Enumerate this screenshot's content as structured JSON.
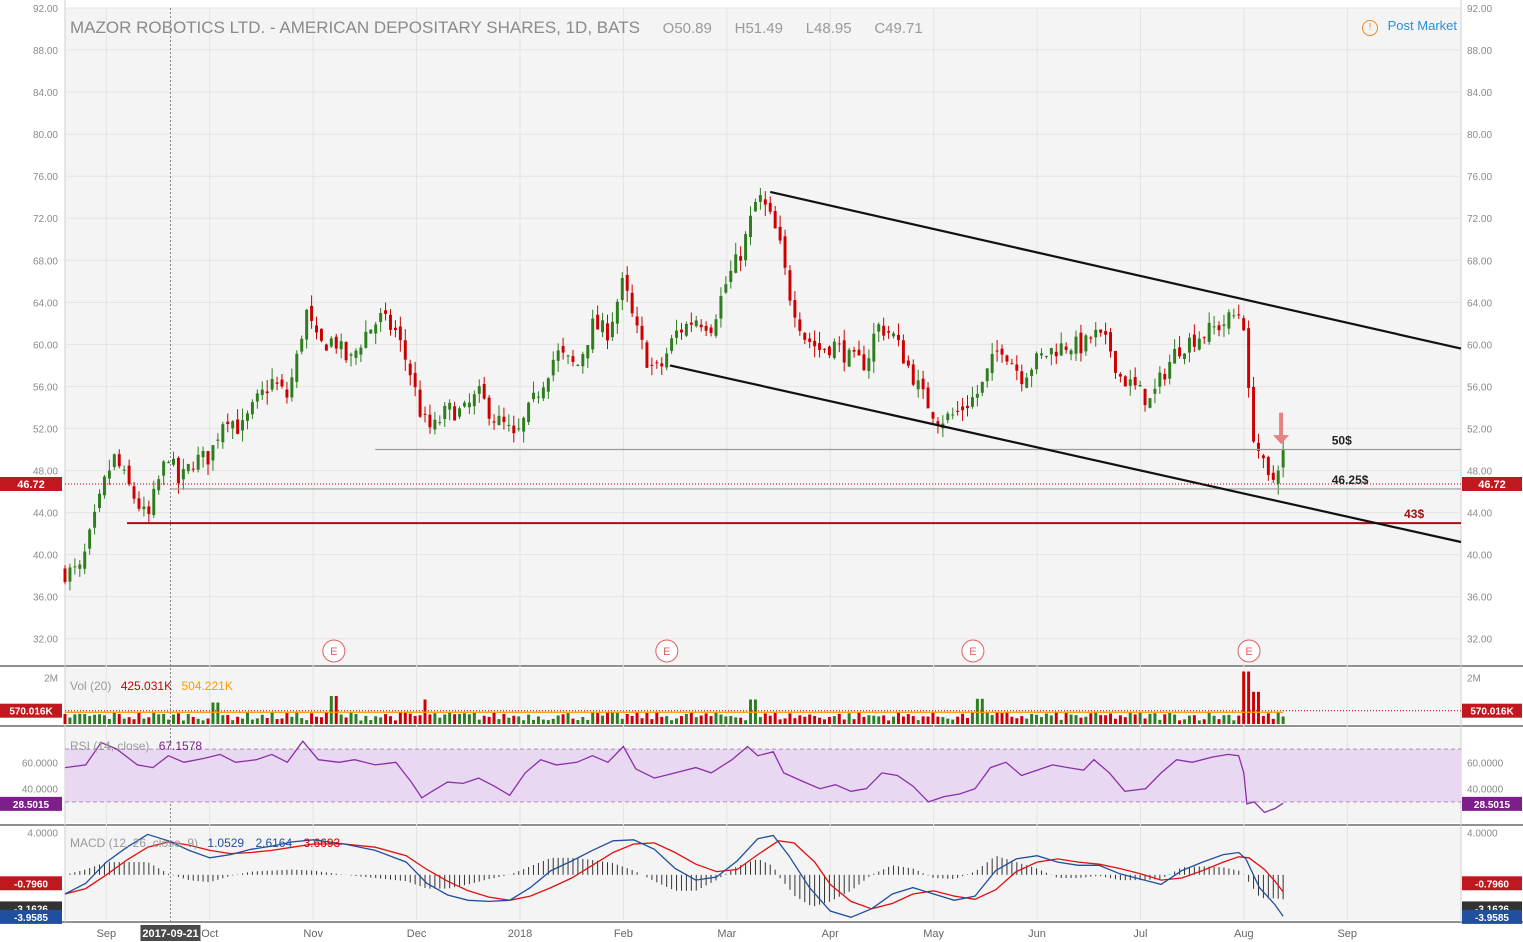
{
  "header": {
    "title": "MAZOR ROBOTICS LTD. - AMERICAN DEPOSITARY SHARES, 1D, BATS",
    "open": "O50.89",
    "high": "H51.49",
    "low": "L48.95",
    "close": "C49.71",
    "post_market": "Post Market"
  },
  "indicators": {
    "vol_label": "Vol (20)",
    "vol_value": "425.031K",
    "vol_ma": "504.221K",
    "rsi_label": "RSI (14, close)",
    "rsi_value": "67.1578",
    "macd_label": "MACD (12, 26, close, 9)",
    "macd_hist": "1.0529",
    "macd_line": "2.6164",
    "macd_signal": "3.6693"
  },
  "colors": {
    "up": "#2e7d1f",
    "down": "#cc0000",
    "background": "#f4f4f4",
    "rsi_fill": "#e8d8f2",
    "rsi_line": "#8b2fa8",
    "macd_line": "#1f4f9e",
    "signal_line": "#e01010",
    "support_43": "#a11111",
    "arrow": "#e88080"
  },
  "chart_data": {
    "type": "candlestick",
    "title": "MAZOR ROBOTICS LTD. - AMERICAN DEPOSITARY SHARES, 1D, BATS",
    "ylim": [
      29.5,
      92
    ],
    "y_ticks": [
      "92.00",
      "88.00",
      "84.00",
      "80.00",
      "76.00",
      "72.00",
      "68.00",
      "64.00",
      "60.00",
      "56.00",
      "52.00",
      "48.00",
      "44.00",
      "40.00",
      "36.00",
      "32.00"
    ],
    "x_ticks": [
      "Sep",
      "Oct",
      "Nov",
      "Dec",
      "2018",
      "Feb",
      "Mar",
      "Apr",
      "May",
      "Jun",
      "Jul",
      "Aug",
      "Sep"
    ],
    "x_tick_months": [
      0,
      1,
      2,
      3,
      4,
      5,
      6,
      7,
      8,
      9,
      10,
      11,
      12
    ],
    "x_range_months": [
      -0.4,
      13.1
    ],
    "crosshair_date_label": "2017-09-21",
    "crosshair_month": 0.62,
    "price_badge": "46.72",
    "price_last": 46.72,
    "earnings_marker": "E",
    "earnings_months": [
      2.2,
      5.42,
      8.38,
      11.05
    ],
    "close_path": [
      [
        -0.4,
        38.3
      ],
      [
        -0.25,
        38.5
      ],
      [
        -0.1,
        43.8
      ],
      [
        0.0,
        47.5
      ],
      [
        0.08,
        49.2
      ],
      [
        0.25,
        45.8
      ],
      [
        0.4,
        43.2
      ],
      [
        0.48,
        46.3
      ],
      [
        0.6,
        49.6
      ],
      [
        0.7,
        46.8
      ],
      [
        0.85,
        49.0
      ],
      [
        1.0,
        49.3
      ],
      [
        1.15,
        53.5
      ],
      [
        1.3,
        51.8
      ],
      [
        1.45,
        54.5
      ],
      [
        1.6,
        56.5
      ],
      [
        1.75,
        55.0
      ],
      [
        1.85,
        59.0
      ],
      [
        1.93,
        63.2
      ],
      [
        2.05,
        59.8
      ],
      [
        2.2,
        60.5
      ],
      [
        2.35,
        58.2
      ],
      [
        2.5,
        61.0
      ],
      [
        2.65,
        62.5
      ],
      [
        2.8,
        61.2
      ],
      [
        2.95,
        57.0
      ],
      [
        3.05,
        53.0
      ],
      [
        3.15,
        51.8
      ],
      [
        3.3,
        53.8
      ],
      [
        3.45,
        53.5
      ],
      [
        3.6,
        55.3
      ],
      [
        3.75,
        53.0
      ],
      [
        3.88,
        52.0
      ],
      [
        3.95,
        50.8
      ],
      [
        4.1,
        54.0
      ],
      [
        4.2,
        56.0
      ],
      [
        4.35,
        59.2
      ],
      [
        4.55,
        57.8
      ],
      [
        4.7,
        61.8
      ],
      [
        4.85,
        61.2
      ],
      [
        5.0,
        66.0
      ],
      [
        5.1,
        62.0
      ],
      [
        5.25,
        58.0
      ],
      [
        5.35,
        57.5
      ],
      [
        5.5,
        61.0
      ],
      [
        5.7,
        62.5
      ],
      [
        5.85,
        61.8
      ],
      [
        6.0,
        66.0
      ],
      [
        6.15,
        69.0
      ],
      [
        6.3,
        74.2
      ],
      [
        6.4,
        72.5
      ],
      [
        6.5,
        70.0
      ],
      [
        6.6,
        65.0
      ],
      [
        6.75,
        60.8
      ],
      [
        6.9,
        59.5
      ],
      [
        7.05,
        60.0
      ],
      [
        7.2,
        58.5
      ],
      [
        7.35,
        58.2
      ],
      [
        7.45,
        61.8
      ],
      [
        7.6,
        61.0
      ],
      [
        7.75,
        58.0
      ],
      [
        7.9,
        55.0
      ],
      [
        8.05,
        52.8
      ],
      [
        8.2,
        53.3
      ],
      [
        8.35,
        54.6
      ],
      [
        8.45,
        55.6
      ],
      [
        8.55,
        58.0
      ],
      [
        8.65,
        60.0
      ],
      [
        8.75,
        58.5
      ],
      [
        8.85,
        57.0
      ],
      [
        9.0,
        58.5
      ],
      [
        9.15,
        59.5
      ],
      [
        9.3,
        60.0
      ],
      [
        9.45,
        59.8
      ],
      [
        9.55,
        61.0
      ],
      [
        9.7,
        59.8
      ],
      [
        9.8,
        57.0
      ],
      [
        9.95,
        55.8
      ],
      [
        10.1,
        54.5
      ],
      [
        10.2,
        56.8
      ],
      [
        10.35,
        59.5
      ],
      [
        10.5,
        60.5
      ],
      [
        10.65,
        61.2
      ],
      [
        10.8,
        62.0
      ],
      [
        10.95,
        63.0
      ],
      [
        11.0,
        62.0
      ],
      [
        11.02,
        57.5
      ],
      [
        11.08,
        52.0
      ],
      [
        11.14,
        50.0
      ],
      [
        11.2,
        48.0
      ],
      [
        11.26,
        46.3
      ],
      [
        11.32,
        48.5
      ],
      [
        11.38,
        49.71
      ]
    ],
    "vol_ylim": [
      0,
      2400000
    ],
    "vol_tick": "2M",
    "vol_badge": "570.016K",
    "vol_ma_line": 504221,
    "vol_spikes": [
      [
        1.05,
        920000
      ],
      [
        2.2,
        1200000
      ],
      [
        3.1,
        1050000
      ],
      [
        6.25,
        1050000
      ],
      [
        8.45,
        1080000
      ],
      [
        11.02,
        2250000
      ],
      [
        11.12,
        1380000
      ]
    ],
    "rsi_ylim": [
      14,
      86
    ],
    "rsi_ticks": [
      "60.0000",
      "40.0000"
    ],
    "rsi_tick_values": [
      60,
      40
    ],
    "rsi_bands": [
      70,
      30
    ],
    "rsi_badge": "28.5015",
    "rsi_path": [
      [
        -0.4,
        56
      ],
      [
        -0.2,
        58
      ],
      [
        -0.05,
        75
      ],
      [
        0.1,
        70
      ],
      [
        0.3,
        58
      ],
      [
        0.45,
        56
      ],
      [
        0.6,
        65
      ],
      [
        0.75,
        60
      ],
      [
        0.95,
        63
      ],
      [
        1.1,
        66
      ],
      [
        1.25,
        60
      ],
      [
        1.45,
        62
      ],
      [
        1.6,
        66
      ],
      [
        1.75,
        60
      ],
      [
        1.9,
        76
      ],
      [
        2.05,
        62
      ],
      [
        2.25,
        60
      ],
      [
        2.4,
        62
      ],
      [
        2.6,
        58
      ],
      [
        2.8,
        60
      ],
      [
        2.95,
        45
      ],
      [
        3.05,
        33
      ],
      [
        3.15,
        38
      ],
      [
        3.3,
        45
      ],
      [
        3.45,
        44
      ],
      [
        3.6,
        48
      ],
      [
        3.75,
        42
      ],
      [
        3.9,
        35
      ],
      [
        4.05,
        52
      ],
      [
        4.2,
        62
      ],
      [
        4.35,
        58
      ],
      [
        4.55,
        60
      ],
      [
        4.7,
        65
      ],
      [
        4.85,
        60
      ],
      [
        5.0,
        72
      ],
      [
        5.12,
        55
      ],
      [
        5.3,
        48
      ],
      [
        5.5,
        52
      ],
      [
        5.7,
        56
      ],
      [
        5.85,
        52
      ],
      [
        6.05,
        62
      ],
      [
        6.2,
        72
      ],
      [
        6.3,
        65
      ],
      [
        6.45,
        68
      ],
      [
        6.55,
        52
      ],
      [
        6.75,
        45
      ],
      [
        6.9,
        40
      ],
      [
        7.05,
        43
      ],
      [
        7.2,
        38
      ],
      [
        7.35,
        40
      ],
      [
        7.5,
        52
      ],
      [
        7.65,
        50
      ],
      [
        7.8,
        42
      ],
      [
        7.95,
        30
      ],
      [
        8.1,
        34
      ],
      [
        8.25,
        36
      ],
      [
        8.4,
        40
      ],
      [
        8.55,
        56
      ],
      [
        8.7,
        60
      ],
      [
        8.85,
        50
      ],
      [
        9.0,
        54
      ],
      [
        9.15,
        58
      ],
      [
        9.3,
        56
      ],
      [
        9.45,
        54
      ],
      [
        9.55,
        62
      ],
      [
        9.7,
        52
      ],
      [
        9.85,
        38
      ],
      [
        10.05,
        40
      ],
      [
        10.2,
        52
      ],
      [
        10.35,
        62
      ],
      [
        10.5,
        60
      ],
      [
        10.7,
        64
      ],
      [
        10.85,
        66
      ],
      [
        10.95,
        65
      ],
      [
        11.0,
        52
      ],
      [
        11.03,
        28.5
      ],
      [
        11.1,
        30
      ],
      [
        11.2,
        22
      ],
      [
        11.3,
        25
      ],
      [
        11.38,
        29
      ]
    ],
    "macd_ylim": [
      -4.25,
      4.5
    ],
    "macd_ticks": [
      "4.0000"
    ],
    "macd_tick_values": [
      4.0
    ],
    "macd_badges": [
      "-0.7960",
      "-3.1626",
      "-3.9585"
    ],
    "macd_badge_values": [
      -0.796,
      -3.1626,
      -3.9585
    ],
    "macd_path": [
      [
        -0.4,
        -1.8
      ],
      [
        -0.2,
        -0.8
      ],
      [
        0.0,
        1.2
      ],
      [
        0.2,
        2.6
      ],
      [
        0.4,
        3.8
      ],
      [
        0.6,
        3.2
      ],
      [
        0.8,
        2.3
      ],
      [
        1.0,
        1.6
      ],
      [
        1.2,
        1.9
      ],
      [
        1.4,
        2.4
      ],
      [
        1.6,
        2.7
      ],
      [
        1.8,
        3.1
      ],
      [
        2.0,
        3.3
      ],
      [
        2.3,
        2.9
      ],
      [
        2.6,
        2.3
      ],
      [
        2.9,
        1.2
      ],
      [
        3.1,
        -0.8
      ],
      [
        3.3,
        -1.9
      ],
      [
        3.5,
        -2.4
      ],
      [
        3.7,
        -2.5
      ],
      [
        3.9,
        -2.4
      ],
      [
        4.1,
        -1.2
      ],
      [
        4.3,
        0.4
      ],
      [
        4.5,
        1.3
      ],
      [
        4.7,
        2.3
      ],
      [
        4.9,
        3.2
      ],
      [
        5.1,
        3.3
      ],
      [
        5.3,
        2.4
      ],
      [
        5.5,
        0.6
      ],
      [
        5.7,
        -0.5
      ],
      [
        5.9,
        -0.2
      ],
      [
        6.1,
        1.3
      ],
      [
        6.3,
        3.4
      ],
      [
        6.45,
        3.7
      ],
      [
        6.6,
        1.8
      ],
      [
        6.8,
        -1.2
      ],
      [
        7.0,
        -3.4
      ],
      [
        7.2,
        -4.0
      ],
      [
        7.4,
        -3.2
      ],
      [
        7.6,
        -1.8
      ],
      [
        7.8,
        -1.2
      ],
      [
        8.0,
        -1.8
      ],
      [
        8.2,
        -2.4
      ],
      [
        8.4,
        -2.0
      ],
      [
        8.6,
        0.4
      ],
      [
        8.8,
        1.5
      ],
      [
        9.0,
        1.8
      ],
      [
        9.2,
        1.2
      ],
      [
        9.4,
        0.9
      ],
      [
        9.6,
        0.9
      ],
      [
        9.8,
        0.1
      ],
      [
        10.0,
        -0.4
      ],
      [
        10.2,
        -0.9
      ],
      [
        10.4,
        0.4
      ],
      [
        10.6,
        1.2
      ],
      [
        10.8,
        1.9
      ],
      [
        10.95,
        2.1
      ],
      [
        11.02,
        1.5
      ],
      [
        11.15,
        -1.2
      ],
      [
        11.3,
        -2.8
      ],
      [
        11.38,
        -3.9
      ]
    ],
    "signal_path": [
      [
        -0.4,
        -1.8
      ],
      [
        -0.2,
        -1.3
      ],
      [
        0.0,
        0.0
      ],
      [
        0.2,
        1.4
      ],
      [
        0.4,
        2.6
      ],
      [
        0.6,
        3.1
      ],
      [
        0.8,
        2.8
      ],
      [
        1.0,
        2.3
      ],
      [
        1.2,
        2.0
      ],
      [
        1.4,
        2.1
      ],
      [
        1.6,
        2.3
      ],
      [
        1.8,
        2.6
      ],
      [
        2.0,
        2.9
      ],
      [
        2.3,
        2.9
      ],
      [
        2.6,
        2.6
      ],
      [
        2.9,
        1.8
      ],
      [
        3.1,
        0.5
      ],
      [
        3.3,
        -0.6
      ],
      [
        3.5,
        -1.5
      ],
      [
        3.7,
        -2.1
      ],
      [
        3.9,
        -2.4
      ],
      [
        4.1,
        -2.0
      ],
      [
        4.3,
        -1.2
      ],
      [
        4.5,
        -0.3
      ],
      [
        4.7,
        0.9
      ],
      [
        4.9,
        2.1
      ],
      [
        5.1,
        2.9
      ],
      [
        5.3,
        3.0
      ],
      [
        5.5,
        2.1
      ],
      [
        5.7,
        1.0
      ],
      [
        5.9,
        0.3
      ],
      [
        6.1,
        0.5
      ],
      [
        6.3,
        1.9
      ],
      [
        6.5,
        3.2
      ],
      [
        6.65,
        3.0
      ],
      [
        6.85,
        1.2
      ],
      [
        7.0,
        -0.9
      ],
      [
        7.2,
        -2.5
      ],
      [
        7.4,
        -3.2
      ],
      [
        7.6,
        -2.7
      ],
      [
        7.8,
        -1.8
      ],
      [
        8.0,
        -1.5
      ],
      [
        8.2,
        -2.0
      ],
      [
        8.4,
        -2.3
      ],
      [
        8.6,
        -1.4
      ],
      [
        8.8,
        0.3
      ],
      [
        9.0,
        1.2
      ],
      [
        9.2,
        1.5
      ],
      [
        9.4,
        1.2
      ],
      [
        9.6,
        1.0
      ],
      [
        9.8,
        0.6
      ],
      [
        10.0,
        0.1
      ],
      [
        10.2,
        -0.5
      ],
      [
        10.4,
        -0.3
      ],
      [
        10.6,
        0.4
      ],
      [
        10.8,
        1.2
      ],
      [
        10.95,
        1.7
      ],
      [
        11.05,
        1.6
      ],
      [
        11.2,
        0.5
      ],
      [
        11.3,
        -0.6
      ],
      [
        11.38,
        -1.6
      ]
    ],
    "channel_upper": [
      [
        6.42,
        74.5
      ],
      [
        13.1,
        59.6
      ]
    ],
    "channel_lower": [
      [
        5.45,
        58.0
      ],
      [
        13.1,
        41.2
      ]
    ],
    "horizontal_levels": [
      {
        "label": "50$",
        "price": 50.0,
        "from_month": 2.6,
        "color": "#9a9a9a"
      },
      {
        "label": "46.25$",
        "price": 46.25,
        "from_month": 0.62,
        "color": "#9a9a9a"
      },
      {
        "label": "43$",
        "price": 43.0,
        "from_month": 0.2,
        "color": "#a11111"
      }
    ],
    "arrow_mark": {
      "month": 11.36,
      "from_price": 53.5,
      "to_price": 50.8
    }
  }
}
